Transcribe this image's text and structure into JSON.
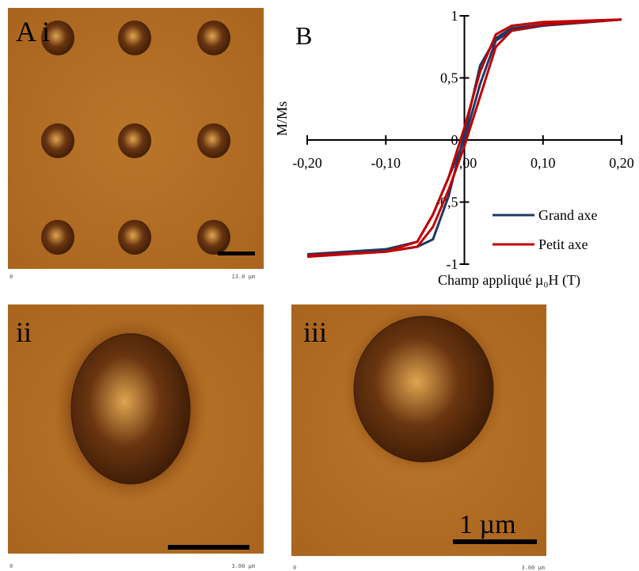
{
  "panels": {
    "a_label": "A i",
    "a_axis_start": "0",
    "a_axis_end": "13.0 µm",
    "ii_label": "ii",
    "ii_axis_start": "0",
    "ii_axis_end": "3.00 µm",
    "iii_label": "iii",
    "iii_axis_start": "0",
    "iii_axis_end": "3.00 µm",
    "iii_scale": "1 µm"
  },
  "chart_data": {
    "type": "line",
    "panel_label": "B",
    "x_label": "Champ appliqué µ₀H (T)",
    "y_label": "M/Ms",
    "x": [
      -0.2,
      -0.1,
      -0.06,
      -0.04,
      -0.02,
      0,
      0.02,
      0.04,
      0.06,
      0.1,
      0.2,
      0.1,
      0.06,
      0.04,
      0.02,
      0,
      -0.02,
      -0.04,
      -0.06,
      -0.1,
      -0.2
    ],
    "series": [
      {
        "name": "Grand axe",
        "color": "#1f3864",
        "values": [
          -0.92,
          -0.88,
          -0.82,
          -0.6,
          -0.3,
          0,
          0.45,
          0.8,
          0.88,
          0.92,
          0.97,
          0.93,
          0.9,
          0.82,
          0.6,
          0.05,
          -0.45,
          -0.8,
          -0.86,
          -0.9,
          -0.93
        ]
      },
      {
        "name": "Petit axe",
        "color": "#c00000",
        "values": [
          -0.93,
          -0.9,
          -0.86,
          -0.7,
          -0.4,
          -0.05,
          0.35,
          0.75,
          0.88,
          0.93,
          0.97,
          0.95,
          0.92,
          0.85,
          0.55,
          0.1,
          -0.3,
          -0.6,
          -0.82,
          -0.9,
          -0.94
        ]
      }
    ],
    "xlim": [
      -0.2,
      0.2
    ],
    "ylim": [
      -1,
      1
    ],
    "xticks": [
      {
        "value": -0.2,
        "label": "-0,20"
      },
      {
        "value": -0.1,
        "label": "-0,10"
      },
      {
        "value": 0,
        "label": "0,00"
      },
      {
        "value": 0.1,
        "label": "0,10"
      },
      {
        "value": 0.2,
        "label": "0,20"
      }
    ],
    "yticks": [
      -1,
      {
        "value": -0.5,
        "label": "-0,5"
      },
      0,
      {
        "value": 0.5,
        "label": "0,5"
      },
      1
    ],
    "legend": "lower right"
  }
}
